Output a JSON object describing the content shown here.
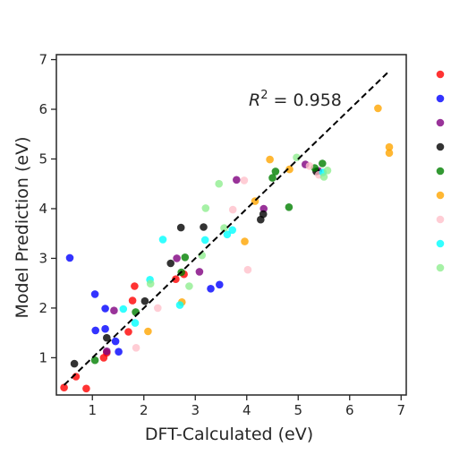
{
  "chart_data": {
    "type": "scatter",
    "xlabel": "DFT-Calculated (eV)",
    "ylabel": "Model Prediction (eV)",
    "xlim": [
      0.3,
      7.1
    ],
    "ylim": [
      0.25,
      7.1
    ],
    "xticks": [
      1,
      2,
      3,
      4,
      5,
      6,
      7
    ],
    "yticks": [
      1,
      2,
      3,
      4,
      5,
      6,
      7
    ],
    "grid": false,
    "legend": "right, labels cut off",
    "annotation": {
      "prefix": "R",
      "superscript": "2",
      "suffix": " = 0.958"
    },
    "reference_line": {
      "style": "dashed",
      "color": "#000000",
      "points": [
        [
          0.45,
          0.45
        ],
        [
          6.75,
          6.75
        ]
      ]
    },
    "series": [
      {
        "color": "#ff0000",
        "points": [
          [
            0.45,
            0.4
          ],
          [
            0.68,
            0.62
          ],
          [
            0.88,
            0.38
          ],
          [
            1.22,
            1.0
          ],
          [
            1.28,
            1.1
          ],
          [
            1.7,
            1.52
          ],
          [
            1.78,
            2.15
          ],
          [
            1.82,
            2.44
          ],
          [
            2.62,
            2.58
          ],
          [
            2.78,
            2.68
          ]
        ]
      },
      {
        "color": "#0000ff",
        "points": [
          [
            0.56,
            3.01
          ],
          [
            1.05,
            2.28
          ],
          [
            1.06,
            1.55
          ],
          [
            1.25,
            1.58
          ],
          [
            1.25,
            1.99
          ],
          [
            1.45,
            1.33
          ],
          [
            1.51,
            1.12
          ],
          [
            3.3,
            2.39
          ],
          [
            3.47,
            2.47
          ]
        ]
      },
      {
        "color": "#800080",
        "points": [
          [
            1.28,
            1.13
          ],
          [
            1.42,
            1.95
          ],
          [
            2.64,
            3.0
          ],
          [
            3.08,
            2.73
          ],
          [
            3.8,
            4.58
          ],
          [
            4.33,
            4.0
          ],
          [
            5.14,
            4.89
          ],
          [
            5.39,
            4.76
          ]
        ]
      },
      {
        "color": "#000000",
        "points": [
          [
            0.65,
            0.88
          ],
          [
            1.28,
            1.4
          ],
          [
            2.02,
            2.14
          ],
          [
            2.52,
            2.9
          ],
          [
            2.72,
            3.62
          ],
          [
            3.16,
            3.63
          ],
          [
            4.27,
            3.78
          ],
          [
            4.32,
            3.89
          ],
          [
            5.35,
            4.75
          ]
        ]
      },
      {
        "color": "#008000",
        "points": [
          [
            1.05,
            0.95
          ],
          [
            1.84,
            1.92
          ],
          [
            2.73,
            2.72
          ],
          [
            2.8,
            3.02
          ],
          [
            4.5,
            4.62
          ],
          [
            4.56,
            4.75
          ],
          [
            4.82,
            4.03
          ],
          [
            5.32,
            4.82
          ],
          [
            5.47,
            4.91
          ]
        ]
      },
      {
        "color": "#ffa500",
        "points": [
          [
            2.08,
            1.53
          ],
          [
            2.74,
            2.12
          ],
          [
            3.96,
            3.34
          ],
          [
            4.16,
            4.15
          ],
          [
            4.45,
            4.99
          ],
          [
            4.83,
            4.79
          ],
          [
            6.55,
            6.02
          ],
          [
            6.77,
            5.24
          ],
          [
            6.77,
            5.12
          ]
        ]
      },
      {
        "color": "#ffc0cb",
        "points": [
          [
            1.85,
            1.2
          ],
          [
            2.27,
            2.0
          ],
          [
            3.73,
            3.98
          ],
          [
            3.95,
            4.57
          ],
          [
            4.02,
            2.77
          ],
          [
            5.22,
            4.86
          ],
          [
            5.4,
            4.68
          ]
        ]
      },
      {
        "color": "#00ffff",
        "points": [
          [
            1.6,
            1.98
          ],
          [
            1.83,
            1.7
          ],
          [
            2.12,
            2.57
          ],
          [
            2.37,
            3.38
          ],
          [
            2.7,
            2.06
          ],
          [
            3.19,
            3.37
          ],
          [
            3.62,
            3.48
          ],
          [
            3.72,
            3.57
          ],
          [
            5.48,
            4.73
          ]
        ]
      },
      {
        "color": "#90ee90",
        "points": [
          [
            2.13,
            2.49
          ],
          [
            2.88,
            2.44
          ],
          [
            3.13,
            3.06
          ],
          [
            3.2,
            4.01
          ],
          [
            3.46,
            4.5
          ],
          [
            3.56,
            3.61
          ],
          [
            4.97,
            5.03
          ],
          [
            5.5,
            4.64
          ],
          [
            5.57,
            4.77
          ]
        ]
      }
    ]
  }
}
